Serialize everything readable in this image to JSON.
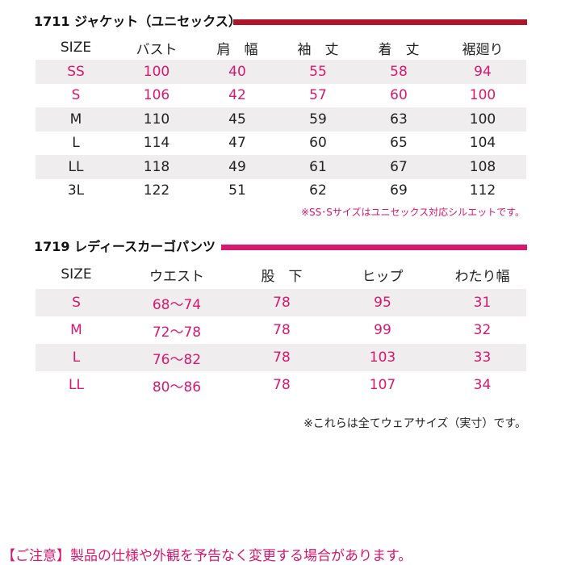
{
  "jacket": {
    "title": "1711 ジャケット（ユニセックス）",
    "bar_color": "#b0162a",
    "headers": [
      "SIZE",
      "バスト",
      "肩　幅",
      "袖　丈",
      "着　丈",
      "裾廻り"
    ],
    "rows": [
      [
        "SS",
        "100",
        "40",
        "55",
        "58",
        "94"
      ],
      [
        "S",
        "106",
        "42",
        "57",
        "60",
        "100"
      ],
      [
        "M",
        "110",
        "45",
        "59",
        "63",
        "100"
      ],
      [
        "L",
        "114",
        "47",
        "60",
        "65",
        "104"
      ],
      [
        "LL",
        "118",
        "49",
        "61",
        "67",
        "108"
      ],
      [
        "3L",
        "122",
        "51",
        "62",
        "69",
        "112"
      ]
    ],
    "note": "※SS･Sサイズはユニセックス対応シルエットです。"
  },
  "pants": {
    "title": "1719 レディースカーゴパンツ",
    "bar_color": "#d7186f",
    "headers": [
      "SIZE",
      "ウエスト",
      "股　下",
      "ヒップ",
      "わたり幅"
    ],
    "rows": [
      [
        "S",
        "68〜74",
        "78",
        "95",
        "31"
      ],
      [
        "M",
        "72〜78",
        "78",
        "99",
        "32"
      ],
      [
        "L",
        "76〜82",
        "78",
        "103",
        "33"
      ],
      [
        "LL",
        "80〜86",
        "78",
        "107",
        "34"
      ]
    ],
    "note": "※これらは全てウェアサイズ（実寸）です。"
  },
  "footer": {
    "caution": "【ご注意】製品の仕様や外観を予告なく変更する場合があります。"
  },
  "colors": {
    "pink": "#d7186f",
    "dark_red": "#b0162a",
    "row_shade": "#efeded"
  }
}
